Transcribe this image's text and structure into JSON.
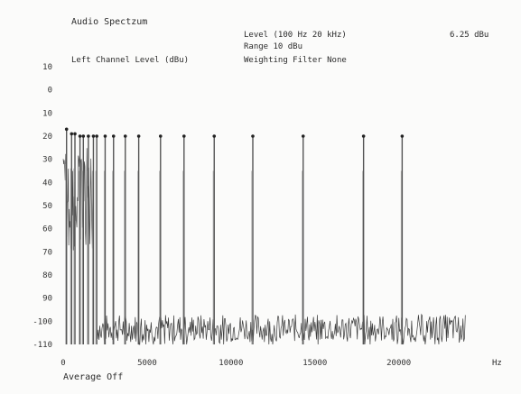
{
  "header": {
    "title": "Audio Spectzum",
    "level": "Level (100 Hz   20 kHz)",
    "level_value": "6.25 dBu",
    "range": "Range  10 dBu",
    "channel": "Left Channel Level (dBu)",
    "weighting": "Weighting Filter  None"
  },
  "footer": {
    "average": "Average Off"
  },
  "chart_data": {
    "type": "line",
    "title": "Audio Spectzum",
    "xlabel": "Hz",
    "ylabel": "Left Channel Level (dBu)",
    "xlim": [
      0,
      24000
    ],
    "ylim": [
      -110,
      10
    ],
    "x_ticks": [
      0,
      5000,
      10000,
      15000,
      20000
    ],
    "x_tick_labels": [
      "0",
      "5000",
      "10000",
      "15000",
      "20000"
    ],
    "y_ticks": [
      10,
      0,
      -10,
      -20,
      -30,
      -40,
      -50,
      -60,
      -70,
      -80,
      -90,
      -100,
      -110
    ],
    "y_tick_labels": [
      "10",
      "0",
      "10",
      "20",
      "30",
      "40",
      "50",
      "60",
      "70",
      "80",
      "90",
      "-100",
      "-110"
    ],
    "grid": false,
    "noise_floor_dbu": -103,
    "peaks": [
      {
        "x": 200,
        "y": -17
      },
      {
        "x": 500,
        "y": -19
      },
      {
        "x": 700,
        "y": -19
      },
      {
        "x": 1000,
        "y": -20
      },
      {
        "x": 1200,
        "y": -20
      },
      {
        "x": 1500,
        "y": -20
      },
      {
        "x": 1800,
        "y": -20
      },
      {
        "x": 2000,
        "y": -20
      },
      {
        "x": 2500,
        "y": -20
      },
      {
        "x": 3000,
        "y": -20
      },
      {
        "x": 3700,
        "y": -20
      },
      {
        "x": 4500,
        "y": -20
      },
      {
        "x": 5800,
        "y": -20
      },
      {
        "x": 7200,
        "y": -20
      },
      {
        "x": 9000,
        "y": -20
      },
      {
        "x": 11300,
        "y": -20
      },
      {
        "x": 14300,
        "y": -20
      },
      {
        "x": 17900,
        "y": -20
      },
      {
        "x": 20200,
        "y": -20
      }
    ]
  }
}
